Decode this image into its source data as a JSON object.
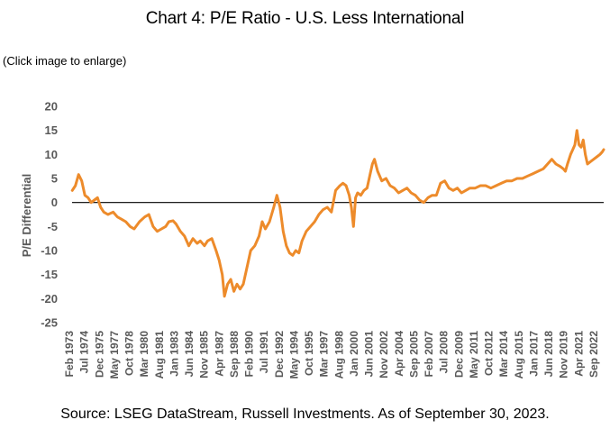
{
  "page": {
    "title": "Chart 4: P/E Ratio - U.S. Less International",
    "click_note": "(Click image to enlarge)",
    "source": "Source: LSEG DataStream, Russell Investments. As of September 30, 2023."
  },
  "colors": {
    "line": "#ED8B2B",
    "zero_line": "#000000",
    "tick_text": "#595959"
  },
  "chart_data": {
    "type": "line",
    "ylabel": "P/E Differential",
    "ylim": [
      -25,
      20
    ],
    "yticks": [
      20,
      15,
      10,
      5,
      0,
      -5,
      -10,
      -15,
      -20,
      -25
    ],
    "xlim": [
      1973.08,
      2023.75
    ],
    "xtick_labels": [
      "Feb 1973",
      "Jul 1974",
      "Dec 1975",
      "May 1977",
      "Oct 1978",
      "Mar 1980",
      "Aug 1981",
      "Jan 1983",
      "Jun 1984",
      "Nov 1985",
      "Apr 1987",
      "Sep 1988",
      "Feb 1990",
      "Jul 1991",
      "Dec 1992",
      "May 1994",
      "Oct 1995",
      "Mar 1997",
      "Aug 1998",
      "Jan 2000",
      "Jun 2001",
      "Nov 2002",
      "Apr 2004",
      "Sep 2005",
      "Feb 2007",
      "Jul 2008",
      "Dec 2009",
      "May 2011",
      "Oct 2012",
      "Mar 2014",
      "Aug 2015",
      "Jan 2017",
      "Jun 2018",
      "Nov 2019",
      "Apr 2021",
      "Sep 2022"
    ],
    "grid": false,
    "legend": "none",
    "series": [
      {
        "x": [
          1973.1,
          1973.4,
          1973.7,
          1974.0,
          1974.3,
          1974.6,
          1974.9,
          1975.2,
          1975.5,
          1975.8,
          1976.1,
          1976.5,
          1977.0,
          1977.4,
          1977.8,
          1978.2,
          1978.6,
          1979.0,
          1979.5,
          1980.0,
          1980.4,
          1980.8,
          1981.2,
          1981.6,
          1982.0,
          1982.3,
          1982.7,
          1983.0,
          1983.4,
          1983.8,
          1984.2,
          1984.6,
          1985.0,
          1985.3,
          1985.7,
          1986.0,
          1986.4,
          1986.8,
          1987.1,
          1987.4,
          1987.6,
          1987.9,
          1988.2,
          1988.5,
          1988.8,
          1989.1,
          1989.4,
          1989.8,
          1990.1,
          1990.5,
          1990.9,
          1991.2,
          1991.5,
          1991.9,
          1992.3,
          1992.6,
          1992.9,
          1993.2,
          1993.5,
          1993.8,
          1994.1,
          1994.4,
          1994.7,
          1995.0,
          1995.4,
          1995.8,
          1996.2,
          1996.6,
          1997.0,
          1997.4,
          1997.8,
          1998.2,
          1998.6,
          1998.9,
          1999.2,
          1999.5,
          1999.7,
          1999.9,
          2000.1,
          2000.3,
          2000.6,
          2000.9,
          2001.2,
          2001.5,
          2001.7,
          2001.9,
          2002.2,
          2002.6,
          2003.0,
          2003.4,
          2003.8,
          2004.2,
          2004.6,
          2005.0,
          2005.4,
          2005.8,
          2006.2,
          2006.6,
          2007.0,
          2007.4,
          2007.8,
          2008.2,
          2008.6,
          2009.0,
          2009.4,
          2009.8,
          2010.2,
          2010.6,
          2011.0,
          2011.5,
          2012.0,
          2012.5,
          2013.0,
          2013.5,
          2014.0,
          2014.5,
          2015.0,
          2015.5,
          2016.0,
          2016.5,
          2017.0,
          2017.5,
          2018.0,
          2018.4,
          2018.8,
          2019.2,
          2019.6,
          2019.9,
          2020.1,
          2020.3,
          2020.6,
          2020.8,
          2021.0,
          2021.2,
          2021.4,
          2021.6,
          2021.8,
          2022.0,
          2022.2,
          2022.5,
          2022.8,
          2023.1,
          2023.4,
          2023.6,
          2023.75
        ],
        "values": [
          2.5,
          3.5,
          5.8,
          4.5,
          1.5,
          1.0,
          0.0,
          0.5,
          1.0,
          -1.0,
          -2.0,
          -2.5,
          -2.0,
          -3.0,
          -3.5,
          -4.0,
          -5.0,
          -5.5,
          -4.0,
          -3.0,
          -2.5,
          -5.0,
          -6.0,
          -5.5,
          -5.0,
          -4.0,
          -3.8,
          -4.5,
          -6.0,
          -7.0,
          -9.0,
          -7.5,
          -8.5,
          -8.0,
          -9.0,
          -8.0,
          -7.5,
          -10.0,
          -12.0,
          -15.0,
          -19.5,
          -17.0,
          -16.0,
          -18.5,
          -17.0,
          -18.0,
          -17.0,
          -13.0,
          -10.0,
          -9.0,
          -7.0,
          -4.0,
          -5.5,
          -4.0,
          -1.0,
          1.5,
          -1.0,
          -6.0,
          -9.0,
          -10.5,
          -11.0,
          -10.0,
          -10.5,
          -8.0,
          -6.0,
          -5.0,
          -4.0,
          -2.5,
          -1.5,
          -1.0,
          -2.0,
          2.5,
          3.5,
          4.0,
          3.5,
          1.5,
          -1.0,
          -5.0,
          1.0,
          2.0,
          1.5,
          2.5,
          3.0,
          6.0,
          8.0,
          9.0,
          6.5,
          4.5,
          5.0,
          3.5,
          3.0,
          2.0,
          2.5,
          3.0,
          2.0,
          1.5,
          0.5,
          0.0,
          1.0,
          1.5,
          1.5,
          4.0,
          4.5,
          3.0,
          2.5,
          3.0,
          2.0,
          2.5,
          3.0,
          3.0,
          3.5,
          3.5,
          3.0,
          3.5,
          4.0,
          4.5,
          4.5,
          5.0,
          5.0,
          5.5,
          6.0,
          6.5,
          7.0,
          8.0,
          9.0,
          8.0,
          7.5,
          7.0,
          6.5,
          8.0,
          10.0,
          11.0,
          12.0,
          15.0,
          12.0,
          11.5,
          13.0,
          10.0,
          8.0,
          8.5,
          9.0,
          9.5,
          10.0,
          10.5,
          11.0
        ]
      }
    ]
  }
}
